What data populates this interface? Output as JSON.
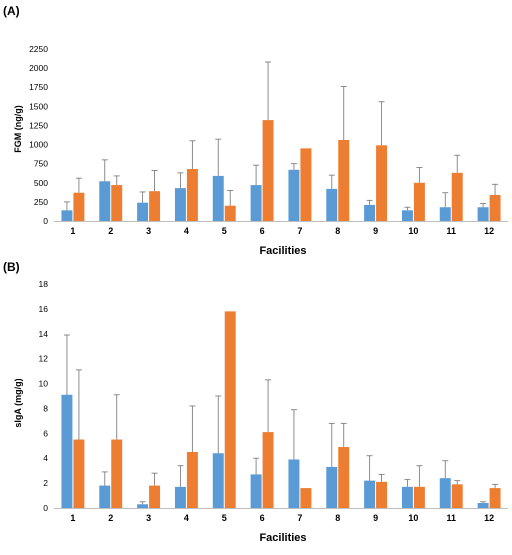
{
  "colors": {
    "series_a": "#5b9bd5",
    "series_b": "#ed7d31",
    "panel_label": "#c00000",
    "error_bar": "#808080"
  },
  "chart_data": [
    {
      "type": "bar",
      "panel_label": "(A)",
      "title": "",
      "xlabel": "Facilities",
      "ylabel": "FGM (ng/g)",
      "ylim": [
        0,
        2250
      ],
      "yticks": [
        0,
        250,
        500,
        750,
        1000,
        1250,
        1500,
        1750,
        2000,
        2250
      ],
      "grid": false,
      "legend": "none",
      "categories": [
        "1",
        "2",
        "3",
        "4",
        "5",
        "6",
        "7",
        "8",
        "9",
        "10",
        "11",
        "12"
      ],
      "series": [
        {
          "values": [
            140,
            520,
            240,
            430,
            590,
            470,
            670,
            420,
            210,
            140,
            180,
            180
          ],
          "errors": [
            110,
            280,
            140,
            200,
            480,
            260,
            80,
            180,
            60,
            40,
            190,
            50
          ]
        },
        {
          "values": [
            370,
            470,
            390,
            680,
            200,
            1320,
            950,
            1060,
            990,
            500,
            630,
            340
          ],
          "errors": [
            190,
            120,
            270,
            370,
            200,
            760,
            0,
            700,
            570,
            200,
            230,
            140
          ]
        }
      ]
    },
    {
      "type": "bar",
      "panel_label": "(B)",
      "title": "",
      "xlabel": "Facilities",
      "ylabel": "sIgA (mg/g)",
      "ylim": [
        0,
        18
      ],
      "yticks": [
        0,
        2,
        4,
        6,
        8,
        10,
        12,
        14,
        16,
        18
      ],
      "grid": false,
      "legend": "none",
      "categories": [
        "1",
        "2",
        "3",
        "4",
        "5",
        "6",
        "7",
        "8",
        "9",
        "10",
        "11",
        "12"
      ],
      "series": [
        {
          "values": [
            9.1,
            1.8,
            0.3,
            1.7,
            4.4,
            2.7,
            3.9,
            3.3,
            2.2,
            1.7,
            2.4,
            0.4
          ],
          "errors": [
            4.8,
            1.1,
            0.2,
            1.7,
            4.6,
            1.3,
            4.0,
            3.5,
            2.0,
            0.6,
            1.4,
            0.1
          ]
        },
        {
          "values": [
            5.5,
            5.5,
            1.8,
            4.5,
            15.8,
            6.1,
            1.6,
            4.9,
            2.1,
            1.7,
            1.9,
            1.6
          ],
          "errors": [
            5.6,
            3.6,
            1.0,
            3.7,
            0,
            4.2,
            0,
            1.9,
            0.6,
            1.7,
            0.3,
            0.3
          ]
        }
      ]
    }
  ]
}
